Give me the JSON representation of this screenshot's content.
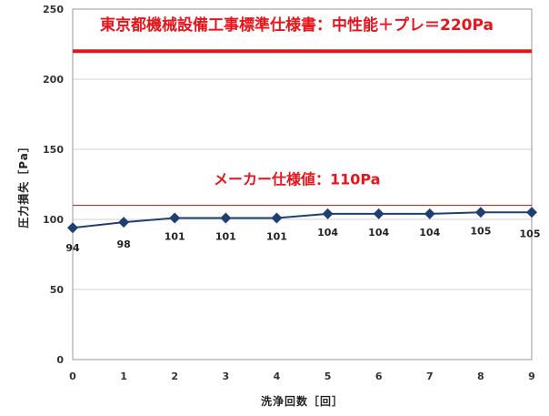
{
  "chart_data": {
    "type": "line",
    "xlabel": "洗浄回数［回］",
    "ylabel": "圧力損失［Pa］",
    "xlim": [
      0,
      9
    ],
    "ylim": [
      0,
      250
    ],
    "x_ticks": [
      "0",
      "1",
      "2",
      "3",
      "4",
      "5",
      "6",
      "7",
      "8",
      "9"
    ],
    "y_ticks": [
      "0",
      "50",
      "100",
      "150",
      "200",
      "250"
    ],
    "grid": "horizontal",
    "series": [
      {
        "x": [
          0,
          1,
          2,
          3,
          4,
          5,
          6,
          7,
          8,
          9
        ],
        "values": [
          94,
          98,
          101,
          101,
          101,
          104,
          104,
          104,
          105,
          105
        ],
        "data_labels": [
          "94",
          "98",
          "101",
          "101",
          "101",
          "104",
          "104",
          "104",
          "105",
          "105"
        ],
        "color": "#1f3f73",
        "marker": "diamond"
      }
    ],
    "reference_lines": [
      {
        "value": 220,
        "label": "東京都機械設備工事標準仕様書：中性能＋プレ＝220Pa",
        "color": "#e8141b"
      },
      {
        "value": 110,
        "label": "メーカー仕様値：110Pa",
        "color": "#b01a1a"
      }
    ]
  }
}
